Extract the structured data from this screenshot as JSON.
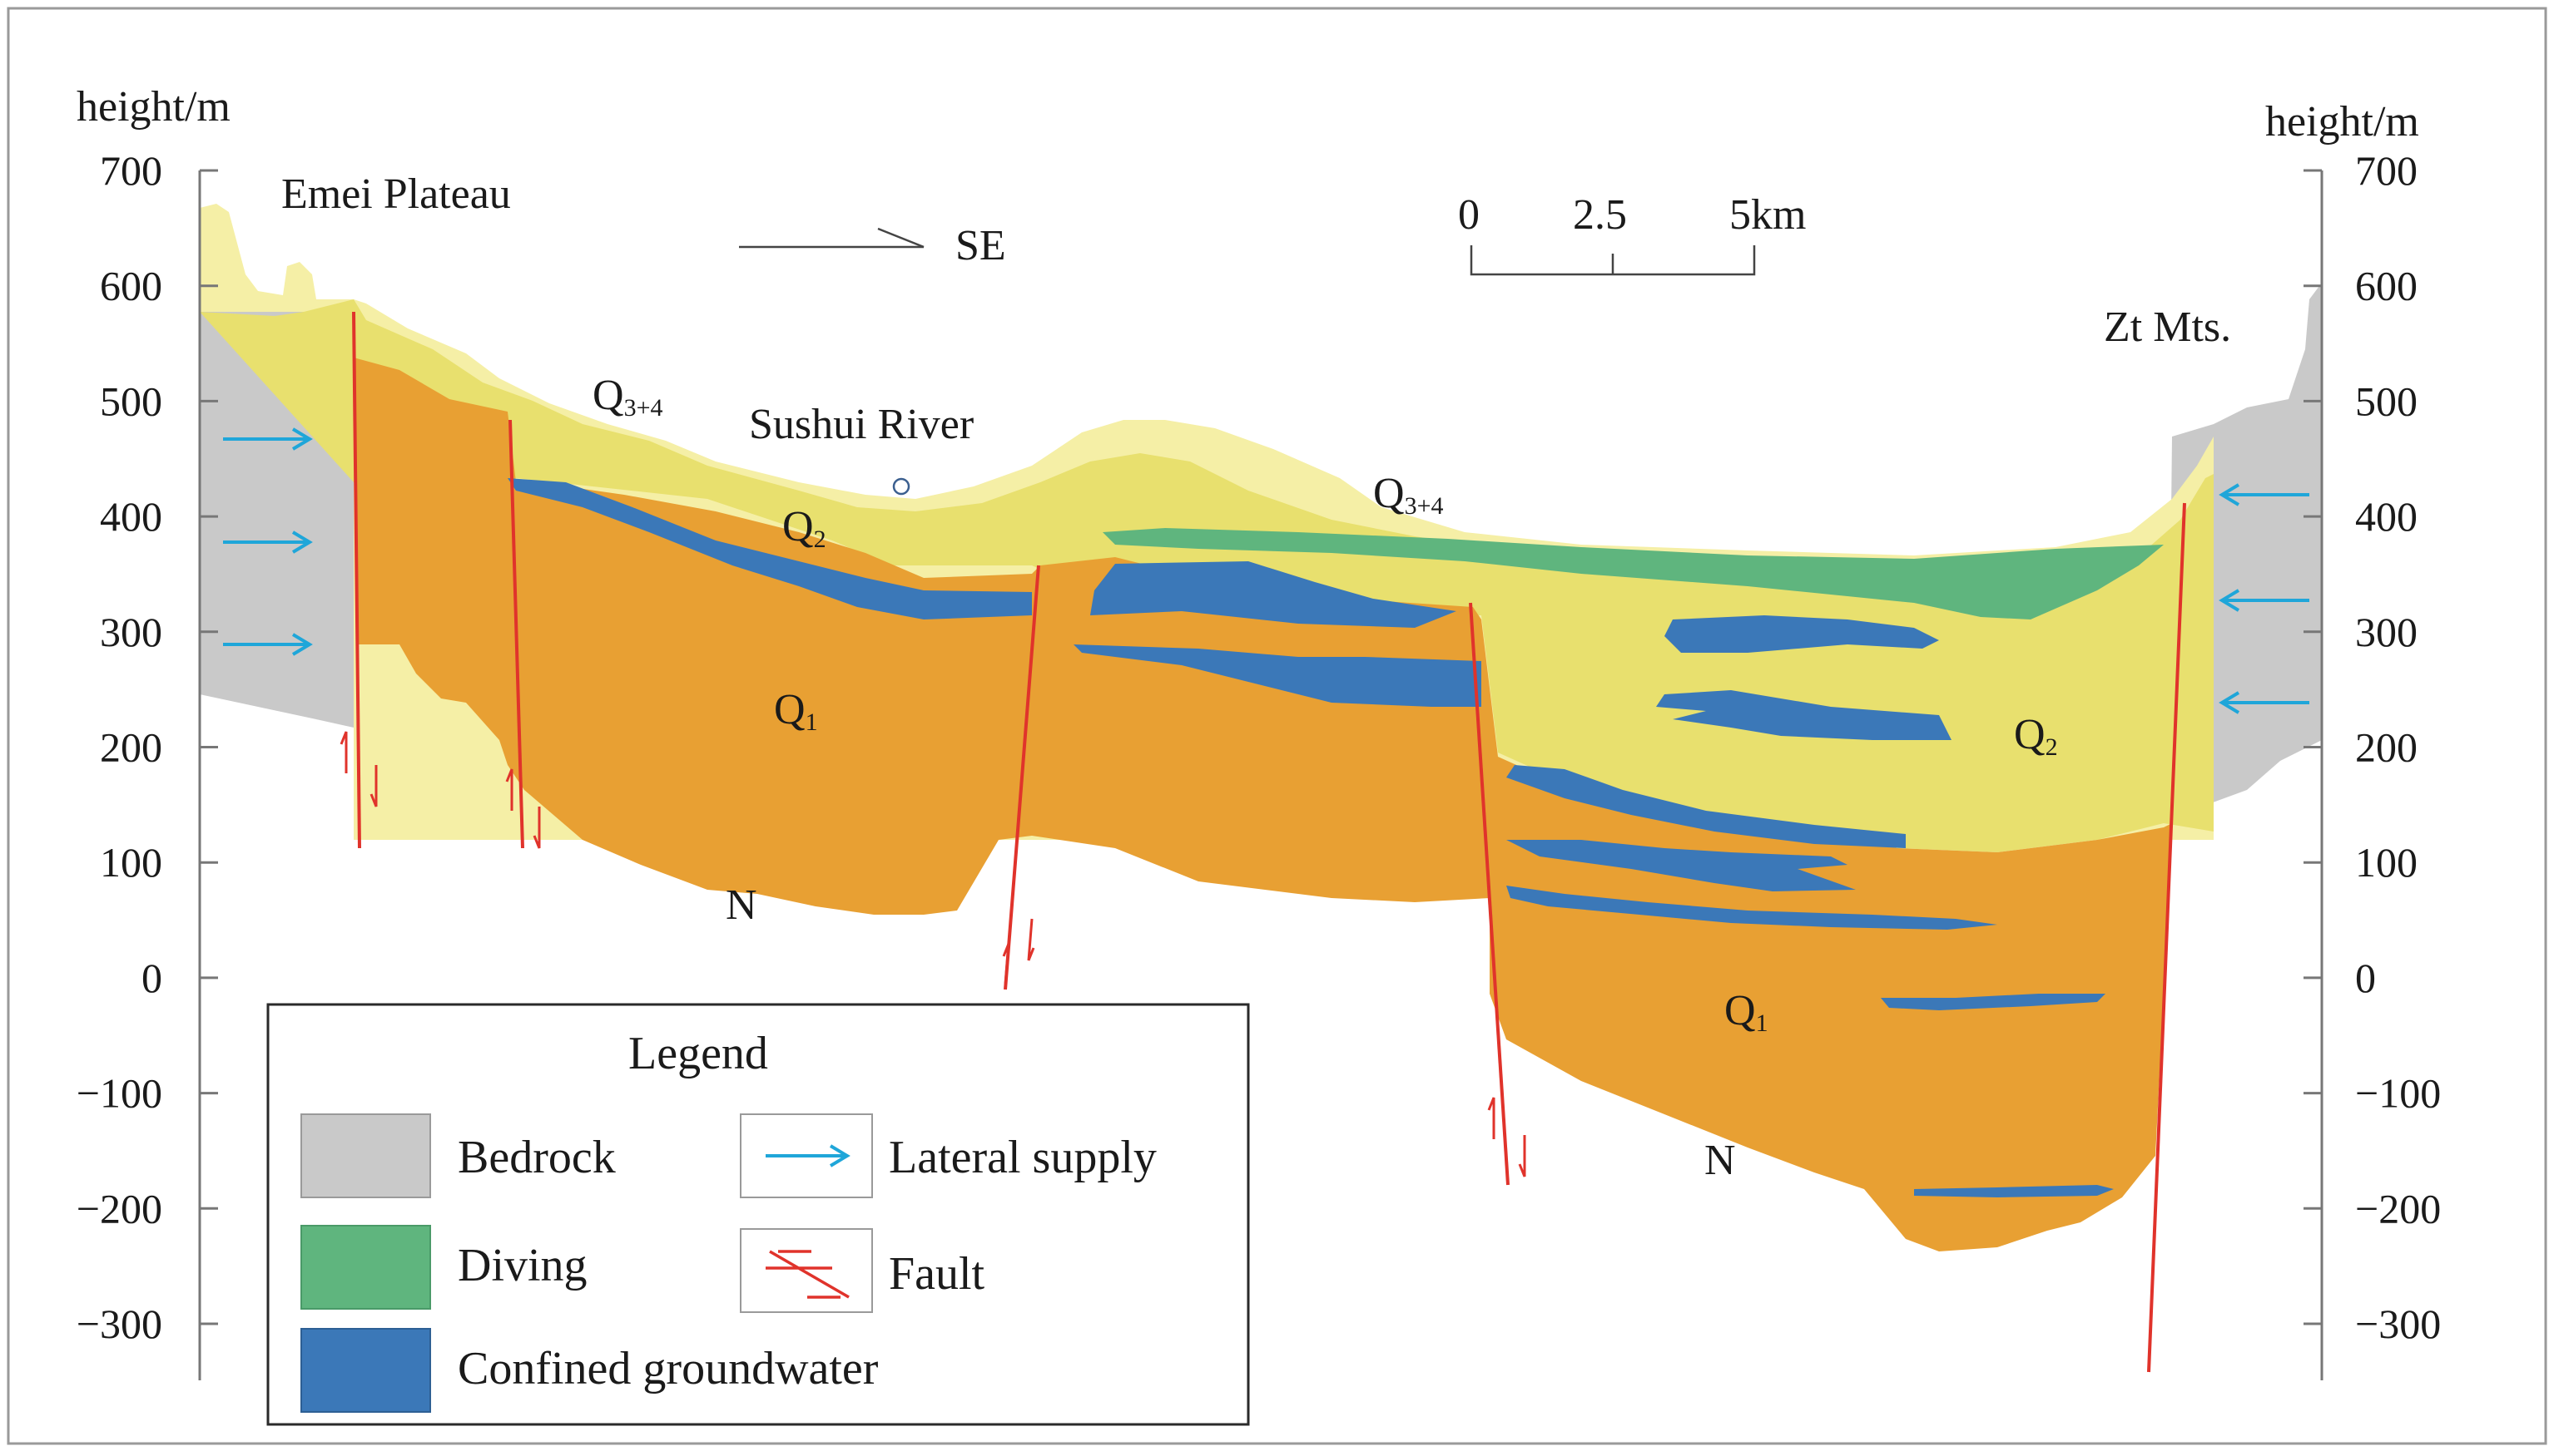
{
  "axis": {
    "left_label": "height/m",
    "right_label": "height/m",
    "ticks": [
      700,
      600,
      500,
      400,
      300,
      200,
      100,
      0,
      -100,
      -200,
      -300
    ],
    "tick_labels": [
      "700",
      "600",
      "500",
      "400",
      "300",
      "200",
      "100",
      "0",
      "−100",
      "−200",
      "−300"
    ]
  },
  "places": {
    "emei": "Emei Plateau",
    "direction": "SE",
    "river": "Sushui River",
    "zt": "Zt Mts."
  },
  "scale_bar": {
    "t0": "0",
    "t1": "2.5",
    "t2": "5km"
  },
  "strata": {
    "q34_main": "Q",
    "q34_sub": "3+4",
    "q2_main": "Q",
    "q2_sub": "2",
    "q1_main": "Q",
    "q1_sub": "1",
    "n": "N"
  },
  "legend": {
    "title": "Legend",
    "bedrock": "Bedrock",
    "diving": "Diving",
    "confined": "Confined groundwater",
    "lateral": "Lateral supply",
    "fault": "Fault"
  },
  "colors": {
    "bedrock": "#c9c9c9",
    "q34": "#f5efa6",
    "q2": "#e8e06e",
    "q1": "#e8a033",
    "diving": "#5fb57e",
    "confined": "#3b78b8",
    "fault": "#e0332b",
    "supply": "#1fa6d9"
  }
}
